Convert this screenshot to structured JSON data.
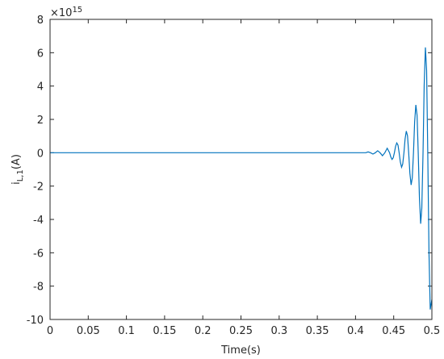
{
  "chart_data": {
    "type": "line",
    "exponent_base": "×10",
    "exponent_power": "15",
    "xlabel": "Time(s)",
    "ylabel_main": "i",
    "ylabel_sub": "L,1",
    "ylabel_unit": "(A)",
    "xlim": [
      0,
      0.5
    ],
    "ylim": [
      -10,
      8
    ],
    "xticks": [
      0,
      0.05,
      0.1,
      0.15,
      0.2,
      0.25,
      0.3,
      0.35,
      0.4,
      0.45,
      0.5
    ],
    "yticks": [
      -10,
      -8,
      -6,
      -4,
      -2,
      0,
      2,
      4,
      6,
      8
    ],
    "series": [
      {
        "color": "#0072bd",
        "x": [
          0,
          0.39,
          0.4134,
          0.4165,
          0.4196,
          0.4228,
          0.4259,
          0.429,
          0.4321,
          0.4353,
          0.4384,
          0.4415,
          0.4446,
          0.4462,
          0.4478,
          0.4493,
          0.4509,
          0.4524,
          0.454,
          0.4556,
          0.4571,
          0.4587,
          0.4603,
          0.4618,
          0.4634,
          0.4649,
          0.4665,
          0.4681,
          0.4696,
          0.4712,
          0.4728,
          0.4743,
          0.4759,
          0.4774,
          0.479,
          0.4806,
          0.4821,
          0.4837,
          0.4853,
          0.4868,
          0.4884,
          0.4899,
          0.4915,
          0.4931,
          0.4946,
          0.4962,
          0.4978,
          0.5
        ],
        "values": [
          0,
          0,
          0,
          0.05,
          0,
          -0.08,
          0,
          0.12,
          0,
          -0.18,
          0,
          0.27,
          0,
          -0.25,
          -0.4,
          -0.31,
          0,
          0.38,
          0.59,
          0.46,
          0,
          -0.56,
          -0.87,
          -0.68,
          0,
          0.83,
          1.3,
          1.01,
          0,
          -1.24,
          -1.93,
          -1.51,
          0,
          1.84,
          2.87,
          2.24,
          0,
          -2.72,
          -4.26,
          -3.32,
          0,
          4.05,
          6.32,
          4.94,
          0,
          -6.02,
          -9.4,
          -8.8
        ]
      }
    ]
  }
}
